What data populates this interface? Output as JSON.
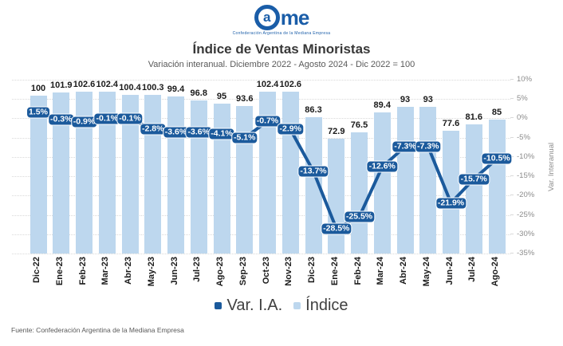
{
  "logo": {
    "wordmark": "Came",
    "letter_in_ring": "a",
    "letters_after": "me",
    "tagline": "Confederación Argentina de la Mediana Empresa",
    "brand_color": "#1A5DA8"
  },
  "header": {
    "title": "Índice de Ventas Minoristas",
    "subtitle": "Variación interanual. Diciembre 2022 - Agosto 2024 - Dic 2022 = 100"
  },
  "chart_data": {
    "type": "bar",
    "subtype": "combo-bar-line",
    "categories": [
      "Dic-22",
      "Ene-23",
      "Feb-23",
      "Mar-23",
      "Abr-23",
      "May-23",
      "Jun-23",
      "Jul-23",
      "Ago-23",
      "Sep-23",
      "Oct-23",
      "Nov-23",
      "Dic-23",
      "Ene-24",
      "Feb-24",
      "Mar-24",
      "Abr-24",
      "May-24",
      "Jun-24",
      "Jul-24",
      "Ago-24"
    ],
    "series": [
      {
        "name": "Var. I.A.",
        "type": "line",
        "unit": "%",
        "color": "#1B5A9C",
        "values": [
          1.5,
          -0.3,
          -0.9,
          -0.1,
          -0.1,
          -2.8,
          -3.6,
          -3.6,
          -4.1,
          -5.1,
          -0.7,
          -2.9,
          -13.7,
          -28.5,
          -25.5,
          -12.6,
          -7.3,
          -7.3,
          -21.9,
          -15.7,
          -10.5
        ]
      },
      {
        "name": "Índice",
        "type": "bar",
        "color": "#BDD7EE",
        "values": [
          100,
          101.9,
          102.6,
          102.4,
          100.4,
          100.3,
          99.4,
          96.8,
          95,
          93.6,
          102.4,
          102.6,
          86.3,
          72.9,
          76.5,
          89.4,
          93,
          93,
          77.6,
          81.6,
          85
        ]
      }
    ],
    "right_axis": {
      "label": "Var. Interanual",
      "min": -35,
      "max": 10,
      "ticks": [
        10,
        5,
        0,
        -5,
        -10,
        -15,
        -20,
        -25,
        -30,
        -35
      ],
      "unit": "%"
    },
    "hidden_bar_axis": {
      "min": 0,
      "max": 110
    },
    "grid": "dotted-horizontal",
    "legend": {
      "position": "bottom",
      "items": [
        {
          "label": "Var. I.A.",
          "color": "#1B5A9C"
        },
        {
          "label": "Índice",
          "color": "#BDD7EE"
        }
      ]
    }
  },
  "footer": {
    "source": "Fuente: Confederación Argentina de la Mediana Empresa"
  }
}
